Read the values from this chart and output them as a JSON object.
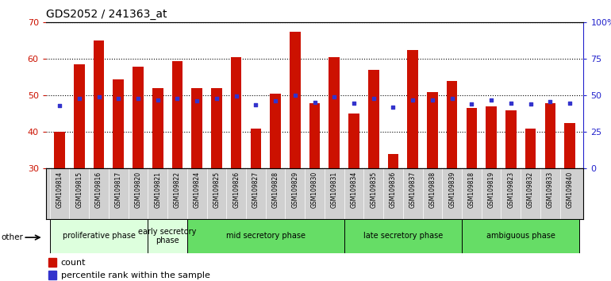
{
  "title": "GDS2052 / 241363_at",
  "samples": [
    "GSM109814",
    "GSM109815",
    "GSM109816",
    "GSM109817",
    "GSM109820",
    "GSM109821",
    "GSM109822",
    "GSM109824",
    "GSM109825",
    "GSM109826",
    "GSM109827",
    "GSM109828",
    "GSM109829",
    "GSM109830",
    "GSM109831",
    "GSM109834",
    "GSM109835",
    "GSM109836",
    "GSM109837",
    "GSM109838",
    "GSM109839",
    "GSM109818",
    "GSM109819",
    "GSM109823",
    "GSM109832",
    "GSM109833",
    "GSM109840"
  ],
  "count": [
    40,
    58.5,
    65,
    54.5,
    58,
    52,
    59.5,
    52,
    52,
    60.5,
    41,
    50.5,
    67.5,
    48,
    60.5,
    45,
    57,
    34,
    62.5,
    51,
    54,
    46.5,
    47,
    46,
    41,
    48,
    42.5
  ],
  "percentile": [
    43,
    48,
    49,
    48,
    48,
    47,
    48,
    46.5,
    48,
    49.5,
    43.5,
    46.5,
    50,
    45.5,
    49,
    45,
    48,
    42,
    47,
    47,
    48,
    44,
    47,
    45,
    44,
    46,
    45
  ],
  "ylim_left": [
    30,
    70
  ],
  "ylim_right": [
    0,
    100
  ],
  "yticks_left": [
    30,
    40,
    50,
    60,
    70
  ],
  "yticks_right": [
    0,
    25,
    50,
    75,
    100
  ],
  "ytick_labels_right": [
    "0",
    "25",
    "50",
    "75",
    "100%"
  ],
  "bar_color": "#cc1100",
  "dot_color": "#3333cc",
  "phase_definitions": [
    {
      "label": "proliferative phase",
      "cols": [
        0,
        1,
        2,
        3,
        4
      ],
      "color": "#ddffdd"
    },
    {
      "label": "early secretory\nphase",
      "cols": [
        5,
        6
      ],
      "color": "#ddffdd"
    },
    {
      "label": "mid secretory phase",
      "cols": [
        7,
        8,
        9,
        10,
        11,
        12,
        13,
        14
      ],
      "color": "#66dd66"
    },
    {
      "label": "late secretory phase",
      "cols": [
        15,
        16,
        17,
        18,
        19,
        20
      ],
      "color": "#66dd66"
    },
    {
      "label": "ambiguous phase",
      "cols": [
        21,
        22,
        23,
        24,
        25,
        26
      ],
      "color": "#66dd66"
    }
  ],
  "plot_bg": "#ffffff",
  "xtick_bg": "#d0d0d0",
  "left_axis_color": "#cc1100",
  "right_axis_color": "#2222cc"
}
